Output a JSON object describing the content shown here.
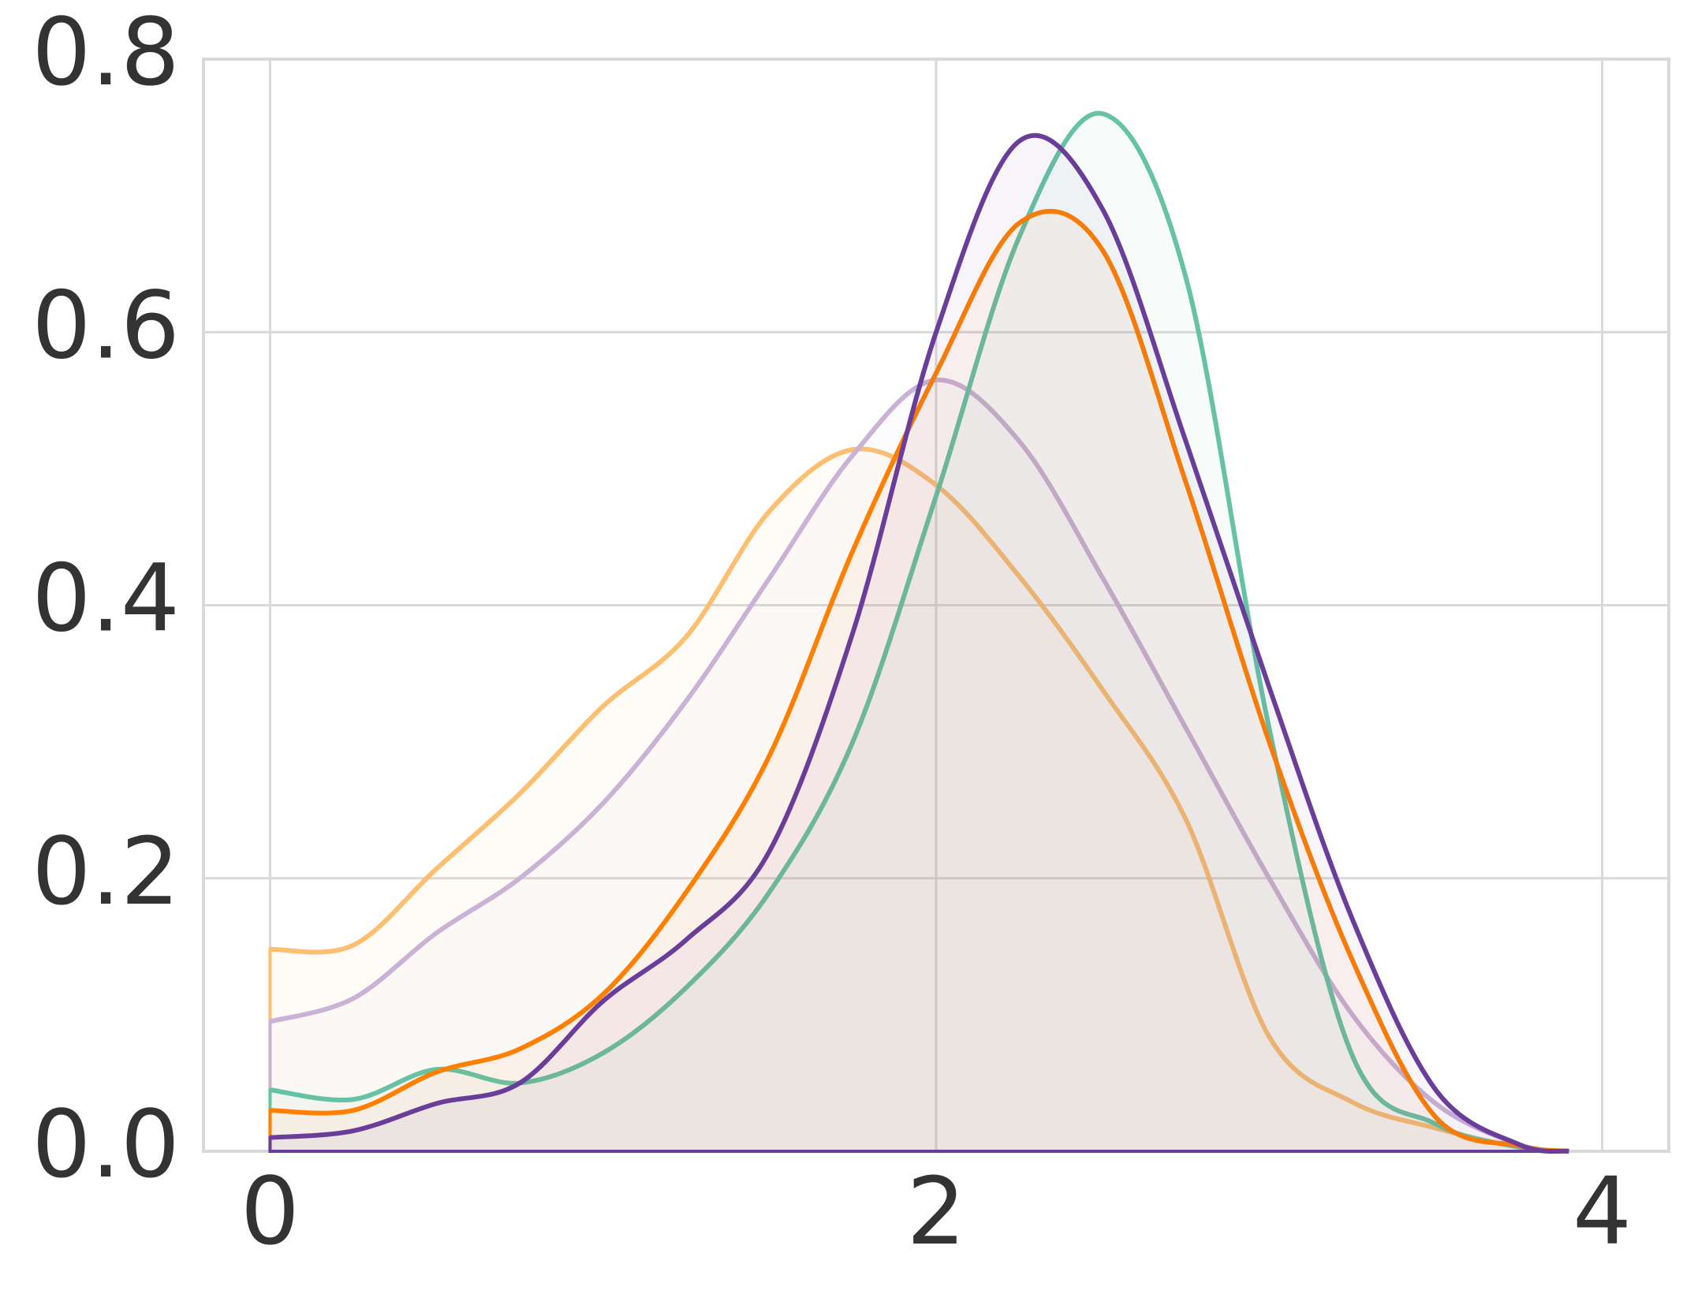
{
  "chart_data": {
    "type": "line",
    "x": [
      0,
      0.25,
      0.5,
      0.75,
      1.0,
      1.25,
      1.5,
      1.75,
      2.0,
      2.25,
      2.5,
      2.75,
      3.0,
      3.25,
      3.5,
      3.75,
      3.9
    ],
    "series": [
      {
        "color": "#fdbf6f",
        "values": [
          0.148,
          0.151,
          0.207,
          0.262,
          0.326,
          0.377,
          0.469,
          0.514,
          0.488,
          0.421,
          0.338,
          0.243,
          0.084,
          0.036,
          0.017,
          0.003,
          0
        ]
      },
      {
        "color": "#cab2d6",
        "values": [
          0.095,
          0.112,
          0.16,
          0.2,
          0.255,
          0.33,
          0.42,
          0.51,
          0.565,
          0.52,
          0.42,
          0.31,
          0.2,
          0.1,
          0.035,
          0.005,
          0
        ]
      },
      {
        "color": "#66c2a5",
        "values": [
          0.045,
          0.038,
          0.06,
          0.05,
          0.072,
          0.12,
          0.19,
          0.3,
          0.48,
          0.67,
          0.76,
          0.64,
          0.31,
          0.07,
          0.02,
          0.003,
          0
        ]
      },
      {
        "color": "#ff7f00",
        "values": [
          0.03,
          0.03,
          0.058,
          0.075,
          0.115,
          0.19,
          0.29,
          0.44,
          0.57,
          0.68,
          0.66,
          0.49,
          0.3,
          0.14,
          0.025,
          0.004,
          0
        ]
      },
      {
        "color": "#6a3d9a",
        "values": [
          0.01,
          0.015,
          0.035,
          0.05,
          0.11,
          0.155,
          0.22,
          0.38,
          0.6,
          0.74,
          0.69,
          0.52,
          0.34,
          0.17,
          0.045,
          0.005,
          0
        ]
      }
    ],
    "xlim": [
      -0.2,
      4.2
    ],
    "ylim": [
      0,
      0.8
    ],
    "xticks": [
      0,
      2,
      4
    ],
    "yticks": [
      {
        "value": 0,
        "label": "0.0"
      },
      0.2,
      0.4,
      0.6,
      0.8
    ],
    "grid": true
  }
}
